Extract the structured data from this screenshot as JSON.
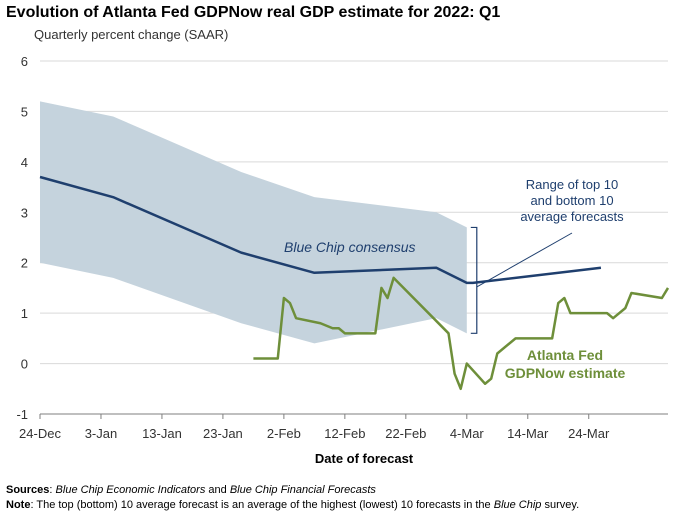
{
  "chart_data": {
    "type": "line",
    "title": "Evolution of Atlanta Fed GDPNow real GDP estimate for 2022: Q1",
    "subtitle": "Quarterly percent change (SAAR)",
    "xlabel": "Date of forecast",
    "ylabel": "",
    "ylim": [
      -1,
      6
    ],
    "yticks": [
      "-1",
      "0",
      "1",
      "2",
      "3",
      "4",
      "5",
      "6"
    ],
    "xticks": [
      "24-Dec",
      "3-Jan",
      "13-Jan",
      "23-Jan",
      "2-Feb",
      "12-Feb",
      "22-Feb",
      "4-Mar",
      "14-Mar",
      "24-Mar"
    ],
    "grid": "horizontal",
    "series": [
      {
        "name": "Blue Chip consensus",
        "kind": "line",
        "color": "#1f3f6e",
        "points": [
          [
            "24-Dec",
            3.7
          ],
          [
            "5-Jan",
            3.3
          ],
          [
            "26-Jan",
            2.2
          ],
          [
            "7-Feb",
            1.8
          ],
          [
            "27-Feb",
            1.9
          ],
          [
            "4-Mar",
            1.6
          ],
          [
            "5-Mar",
            1.6
          ],
          [
            "26-Mar",
            1.9
          ]
        ]
      },
      {
        "name": "Range of top 10 and bottom 10 average forecasts",
        "kind": "band",
        "color": "#c5d3dd",
        "upper": [
          [
            "24-Dec",
            5.2
          ],
          [
            "5-Jan",
            4.9
          ],
          [
            "26-Jan",
            3.8
          ],
          [
            "7-Feb",
            3.3
          ],
          [
            "27-Feb",
            3.0
          ],
          [
            "4-Mar",
            2.7
          ]
        ],
        "lower": [
          [
            "24-Dec",
            2.0
          ],
          [
            "5-Jan",
            1.7
          ],
          [
            "26-Jan",
            0.8
          ],
          [
            "7-Feb",
            0.4
          ],
          [
            "27-Feb",
            0.9
          ],
          [
            "4-Mar",
            0.6
          ]
        ]
      },
      {
        "name": "Atlanta Fed GDPNow estimate",
        "kind": "line",
        "color": "#6e8f3a",
        "points": [
          [
            "28-Jan",
            0.1
          ],
          [
            "1-Feb",
            0.1
          ],
          [
            "2-Feb",
            1.3
          ],
          [
            "3-Feb",
            1.2
          ],
          [
            "4-Feb",
            0.9
          ],
          [
            "8-Feb",
            0.8
          ],
          [
            "10-Feb",
            0.7
          ],
          [
            "11-Feb",
            0.7
          ],
          [
            "12-Feb",
            0.6
          ],
          [
            "17-Feb",
            0.6
          ],
          [
            "18-Feb",
            1.5
          ],
          [
            "19-Feb",
            1.3
          ],
          [
            "20-Feb",
            1.7
          ],
          [
            "1-Mar",
            0.6
          ],
          [
            "2-Mar",
            -0.2
          ],
          [
            "3-Mar",
            -0.5
          ],
          [
            "4-Mar",
            0.0
          ],
          [
            "7-Mar",
            -0.4
          ],
          [
            "8-Mar",
            -0.3
          ],
          [
            "9-Mar",
            0.2
          ],
          [
            "12-Mar",
            0.5
          ],
          [
            "18-Mar",
            0.5
          ],
          [
            "19-Mar",
            1.2
          ],
          [
            "20-Mar",
            1.3
          ],
          [
            "21-Mar",
            1.0
          ],
          [
            "23-Mar",
            1.0
          ],
          [
            "27-Mar",
            1.0
          ],
          [
            "28-Mar",
            0.9
          ],
          [
            "30-Mar",
            1.1
          ],
          [
            "31-Mar",
            1.4
          ],
          [
            "5-Apr",
            1.3
          ],
          [
            "6-Apr",
            1.5
          ]
        ]
      }
    ],
    "annotations": {
      "blue_chip_label": "Blue Chip consensus",
      "range_label_lines": [
        "Range of top 10",
        "and bottom 10",
        "average forecasts"
      ],
      "gdpnow_label_lines": [
        "Atlanta Fed",
        "GDPNow estimate"
      ]
    }
  },
  "notes": {
    "sources_label": "Sources",
    "sources_text_1": "Blue Chip Economic Indicators",
    "sources_and": " and ",
    "sources_text_2": "Blue Chip Financial Forecasts",
    "note_label": "Note",
    "note_text_1": ": The top (bottom) 10 average forecast is an average of the highest (lowest) 10 forecasts in the ",
    "note_text_2": "Blue Chip",
    "note_text_3": " survey."
  }
}
